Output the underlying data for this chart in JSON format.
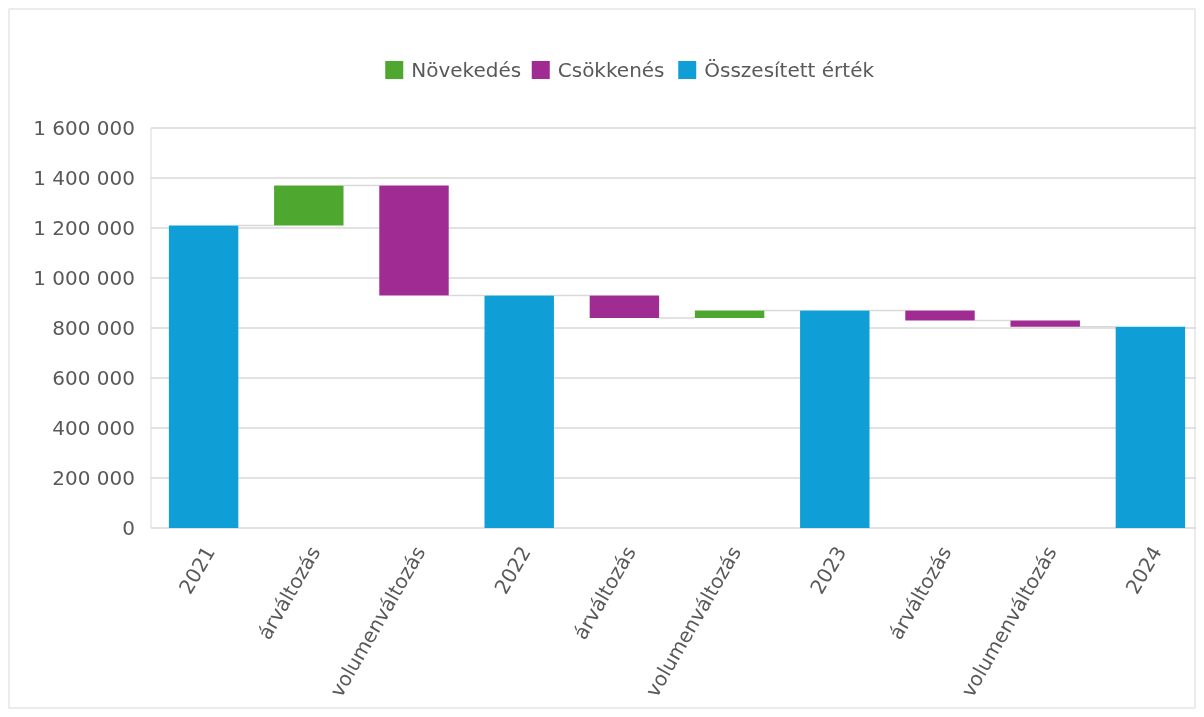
{
  "chart_data": {
    "type": "bar",
    "categories": [
      "2021",
      "árváltozás",
      "volumenváltozás",
      "2022",
      "árváltozás",
      "volumenváltozás",
      "2023",
      "árváltozás",
      "volumenváltozás",
      "2024"
    ],
    "series": [
      {
        "name": "Növekedés",
        "color": "#4ea72e",
        "values": [
          null,
          160000,
          null,
          null,
          null,
          30000,
          null,
          null,
          null,
          null
        ],
        "base": [
          null,
          1210000,
          null,
          null,
          null,
          840000,
          null,
          null,
          null,
          null
        ]
      },
      {
        "name": "Csökkenés",
        "color": "#a02b93",
        "values": [
          null,
          null,
          440000,
          null,
          90000,
          null,
          null,
          40000,
          25000,
          null
        ],
        "base": [
          null,
          null,
          930000,
          null,
          840000,
          null,
          null,
          830000,
          805000,
          null
        ]
      },
      {
        "name": "Összesített érték",
        "color": "#0f9ed5",
        "values": [
          1210000,
          null,
          null,
          930000,
          null,
          null,
          870000,
          null,
          null,
          805000
        ]
      }
    ],
    "ylim": [
      0,
      1600000
    ],
    "yticks": [
      0,
      {
        "value": 200000,
        "label": "200 000"
      },
      {
        "value": 400000,
        "label": "400 000"
      },
      {
        "value": 600000,
        "label": "600 000"
      },
      {
        "value": 800000,
        "label": "800 000"
      },
      {
        "value": 1000000,
        "label": "1 000 000"
      },
      {
        "value": 1200000,
        "label": "1 200 000"
      },
      {
        "value": 1400000,
        "label": "1 400 000"
      },
      {
        "value": 1600000,
        "label": "1 600 000"
      }
    ],
    "grid": "y",
    "legend": "top"
  }
}
